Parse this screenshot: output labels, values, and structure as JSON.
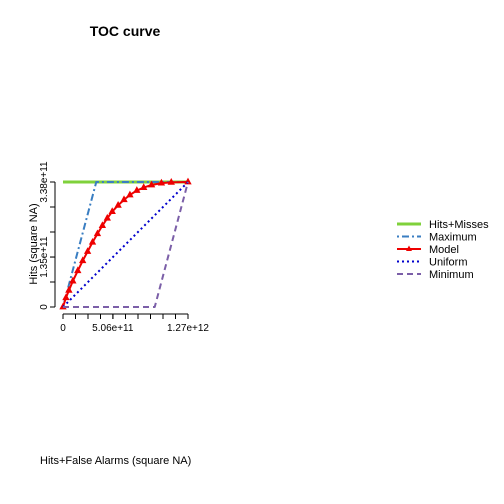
{
  "chart_data": {
    "type": "line",
    "title": "TOC curve",
    "xlabel": "Hits+False Alarms (square NA)",
    "ylabel": "Hits (square NA)",
    "xlim": [
      0,
      1270000000000
    ],
    "ylim": [
      0,
      338000000000
    ],
    "x_ticks": [
      {
        "value": 0,
        "label": "0"
      },
      {
        "value": 506000000000,
        "label": "5.06e+11"
      },
      {
        "value": 1270000000000,
        "label": "1.27e+12"
      }
    ],
    "y_ticks": [
      {
        "value": 0,
        "label": "0"
      },
      {
        "value": 135000000000,
        "label": "1.35e+11"
      },
      {
        "value": 338000000000,
        "label": "3.38e+11"
      }
    ],
    "legend_position": "right",
    "series": [
      {
        "name": "Hits+Misses",
        "color": "#7fd13b",
        "line": "solid",
        "x": [
          0,
          1270000000000
        ],
        "y": [
          338000000000,
          338000000000
        ]
      },
      {
        "name": "Maximum",
        "color": "#3a7ec2",
        "line": "dotdash",
        "x": [
          0,
          338000000000,
          1270000000000
        ],
        "y": [
          0,
          338000000000,
          338000000000
        ]
      },
      {
        "name": "Model",
        "color": "#ee0000",
        "line": "solid",
        "marker": "triangle",
        "x": [
          0,
          30000000000,
          60000000000,
          100000000000,
          150000000000,
          200000000000,
          250000000000,
          300000000000,
          350000000000,
          400000000000,
          450000000000,
          500000000000,
          560000000000,
          620000000000,
          680000000000,
          750000000000,
          820000000000,
          900000000000,
          1000000000000,
          1100000000000,
          1270000000000
        ],
        "y": [
          0,
          25000000000,
          45000000000,
          70000000000,
          98000000000,
          125000000000,
          150000000000,
          175000000000,
          198000000000,
          220000000000,
          240000000000,
          258000000000,
          275000000000,
          290000000000,
          303000000000,
          315000000000,
          323000000000,
          330000000000,
          335000000000,
          337000000000,
          338000000000
        ]
      },
      {
        "name": "Uniform",
        "color": "#0000cc",
        "line": "dotted",
        "x": [
          0,
          1270000000000
        ],
        "y": [
          0,
          338000000000
        ]
      },
      {
        "name": "Minimum",
        "color": "#7b5fa8",
        "line": "dashed",
        "x": [
          0,
          932000000000,
          1270000000000
        ],
        "y": [
          0,
          0,
          338000000000
        ]
      }
    ]
  }
}
